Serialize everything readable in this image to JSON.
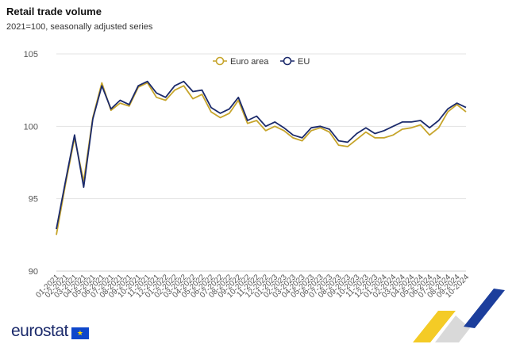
{
  "header": {
    "title": "Retail trade volume",
    "subtitle": "2021=100, seasonally adjusted series"
  },
  "footer": {
    "brand": "eurostat",
    "flag_icon": "eu-flag-icon"
  },
  "colors": {
    "euro_area": "#c6a42a",
    "eu": "#1b2a6b",
    "grid": "#e3e3e3",
    "axis_text": "#555555"
  },
  "chart_data": {
    "type": "line",
    "title": "Retail trade volume",
    "subtitle": "2021=100, seasonally adjusted series",
    "xlabel": "",
    "ylabel": "",
    "ylim": [
      90,
      105
    ],
    "yticks": [
      90,
      95,
      100,
      105
    ],
    "grid": true,
    "legend_position": "top-center",
    "categories": [
      "01-2021",
      "02-2021",
      "03-2021",
      "04-2021",
      "05-2021",
      "06-2021",
      "07-2021",
      "08-2021",
      "09-2021",
      "10-2021",
      "11-2021",
      "12-2021",
      "01-2022",
      "02-2022",
      "03-2022",
      "04-2022",
      "05-2022",
      "06-2022",
      "07-2022",
      "08-2022",
      "09-2022",
      "10-2022",
      "11-2022",
      "12-2022",
      "01-2023",
      "02-2023",
      "03-2023",
      "04-2023",
      "05-2023",
      "06-2023",
      "07-2023",
      "08-2023",
      "09-2023",
      "10-2023",
      "11-2023",
      "12-2023",
      "01-2024",
      "02-2024",
      "03-2024",
      "04-2024",
      "05-2024",
      "06-2024",
      "07-2024",
      "08-2024",
      "09-2024",
      "10-2024"
    ],
    "x_tick_labels": [
      "01-2021",
      "02-2021",
      "03-2021",
      "04-2021",
      "05-2021",
      "06-2021",
      "07-2021",
      "08-2021",
      "09-2021",
      "10-2021",
      "11-2021",
      "12-2021",
      "01-2022",
      "02-2022",
      "03-2022",
      "04-2022",
      "05-2022",
      "06-2022",
      "07-2022",
      "08-2022",
      "09-2022",
      "10-2022",
      "11-2022",
      "12-2022",
      "01-2023",
      "02-2023",
      "03-2023",
      "04-2023",
      "05-2023",
      "06-2023",
      "07-2023",
      "08-2023",
      "09-2023",
      "10-2023",
      "11-2023",
      "12-2023",
      "01-2024",
      "02-2024",
      "03-2024",
      "04-2024",
      "05-2024",
      "06-2024",
      "07-2024",
      "08-2024",
      "09-2024",
      "10-2024"
    ],
    "series": [
      {
        "name": "Euro area",
        "color": "#c6a42a",
        "values": [
          92.5,
          96.0,
          99.2,
          96.2,
          100.6,
          103.0,
          101.1,
          101.6,
          101.4,
          102.7,
          103.0,
          102.0,
          101.8,
          102.5,
          102.8,
          101.9,
          102.2,
          101.0,
          100.6,
          100.9,
          101.8,
          100.2,
          100.4,
          99.7,
          100.0,
          99.7,
          99.2,
          99.0,
          99.7,
          99.9,
          99.6,
          98.7,
          98.6,
          99.1,
          99.6,
          99.2,
          99.2,
          99.4,
          99.8,
          99.9,
          100.1,
          99.4,
          99.9,
          101.0,
          101.5,
          101.0
        ]
      },
      {
        "name": "EU",
        "color": "#1b2a6b",
        "values": [
          92.9,
          96.2,
          99.4,
          95.8,
          100.5,
          102.8,
          101.2,
          101.8,
          101.5,
          102.8,
          103.1,
          102.3,
          102.0,
          102.8,
          103.1,
          102.4,
          102.5,
          101.3,
          100.9,
          101.2,
          102.0,
          100.4,
          100.7,
          100.0,
          100.3,
          99.9,
          99.4,
          99.2,
          99.9,
          100.0,
          99.8,
          99.0,
          98.9,
          99.5,
          99.9,
          99.5,
          99.7,
          100.0,
          100.3,
          100.3,
          100.4,
          99.9,
          100.4,
          101.2,
          101.6,
          101.3
        ]
      }
    ]
  }
}
